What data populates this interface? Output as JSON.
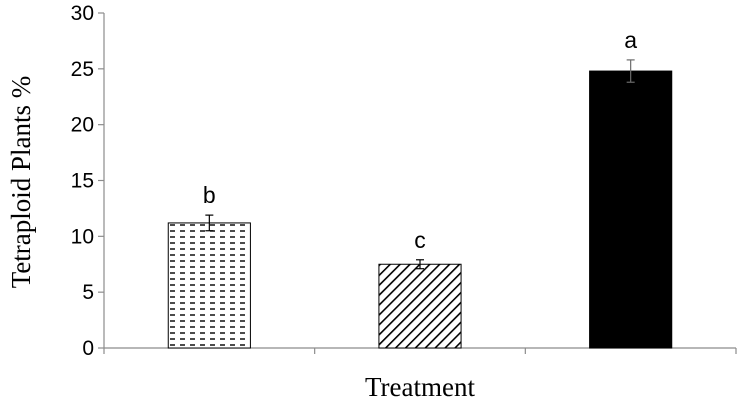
{
  "chart_data": {
    "type": "bar",
    "title": "",
    "xlabel": "Treatment",
    "ylabel": "Tetraploid Plants %",
    "ylim": [
      0,
      30
    ],
    "yticks": [
      0,
      5,
      10,
      15,
      20,
      25,
      30
    ],
    "grid": false,
    "legend": "none",
    "bars": [
      {
        "value": 11.2,
        "error": 0.7,
        "letter": "b",
        "pattern": "dashed-horizontal"
      },
      {
        "value": 7.5,
        "error": 0.4,
        "letter": "c",
        "pattern": "diagonal-hatch"
      },
      {
        "value": 24.8,
        "error": 1.0,
        "letter": "a",
        "pattern": "solid-black"
      }
    ]
  },
  "colors": {
    "axis": "#8c8c8c",
    "bar_fill": "#000000",
    "bar_stroke": "#000000",
    "background": "#ffffff"
  }
}
